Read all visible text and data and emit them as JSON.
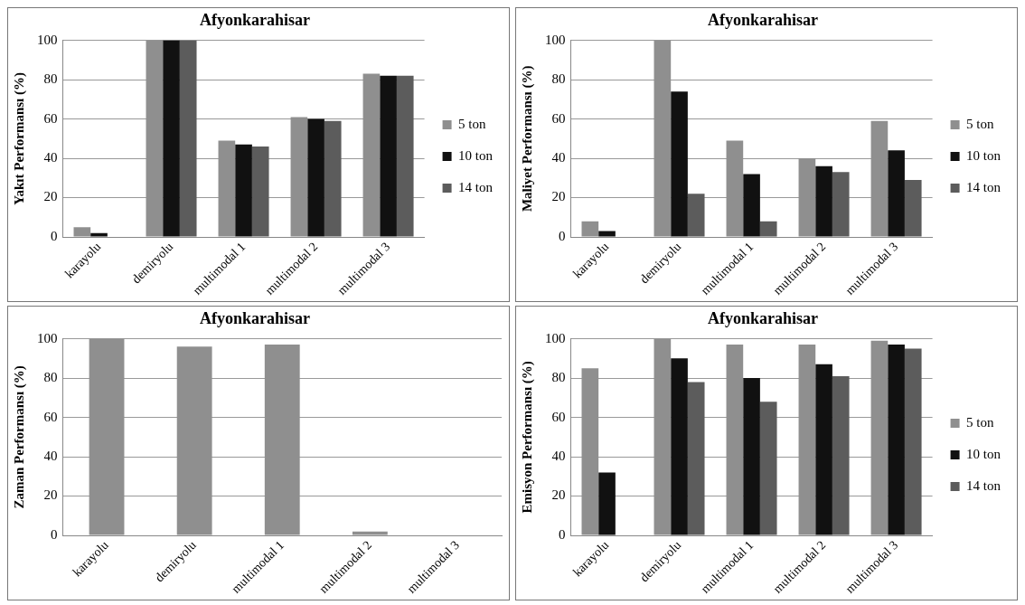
{
  "chart_data": [
    {
      "type": "bar",
      "title": "Afyonkarahisar",
      "ylabel": "Yakıt Performansı (%)",
      "categories": [
        "karayolu",
        "demiryolu",
        "multimodal 1",
        "multimodal 2",
        "multimodal 3"
      ],
      "series": [
        {
          "name": "5 ton",
          "color": "#8f8f8f",
          "values": [
            5,
            100,
            49,
            61,
            83
          ]
        },
        {
          "name": "10 ton",
          "color": "#111111",
          "values": [
            2,
            100,
            47,
            60,
            82
          ]
        },
        {
          "name": "14 ton",
          "color": "#5c5c5c",
          "values": [
            0,
            100,
            46,
            59,
            82
          ]
        }
      ],
      "ylim": [
        0,
        100
      ],
      "yticks": [
        0,
        20,
        40,
        60,
        80,
        100
      ],
      "grid": "y",
      "legend": "right"
    },
    {
      "type": "bar",
      "title": "Afyonkarahisar",
      "ylabel": "Maliyet Performansı (%)",
      "categories": [
        "karayolu",
        "demiryolu",
        "multimodal 1",
        "multimodal 2",
        "multimodal 3"
      ],
      "series": [
        {
          "name": "5 ton",
          "color": "#8f8f8f",
          "values": [
            8,
            100,
            49,
            40,
            59
          ]
        },
        {
          "name": "10 ton",
          "color": "#111111",
          "values": [
            3,
            74,
            32,
            36,
            44
          ]
        },
        {
          "name": "14 ton",
          "color": "#5c5c5c",
          "values": [
            0,
            22,
            8,
            33,
            29
          ]
        }
      ],
      "ylim": [
        0,
        100
      ],
      "yticks": [
        0,
        20,
        40,
        60,
        80,
        100
      ],
      "grid": "y",
      "legend": "right"
    },
    {
      "type": "bar",
      "title": "Afyonkarahisar",
      "ylabel": "Zaman Performansı (%)",
      "categories": [
        "karayolu",
        "demiryolu",
        "multimodal 1",
        "multimodal 2",
        "multimodal 3"
      ],
      "series": [
        {
          "color": "#8f8f8f",
          "values": [
            100,
            96,
            97,
            2,
            0
          ]
        }
      ],
      "ylim": [
        0,
        100
      ],
      "yticks": [
        0,
        20,
        40,
        60,
        80,
        100
      ],
      "grid": "y"
    },
    {
      "type": "bar",
      "title": "Afyonkarahisar",
      "ylabel": "Emisyon Performansı (%)",
      "categories": [
        "karayolu",
        "demiryolu",
        "multimodal 1",
        "multimodal 2",
        "multimodal 3"
      ],
      "series": [
        {
          "name": "5 ton",
          "color": "#8f8f8f",
          "values": [
            85,
            100,
            97,
            97,
            99
          ]
        },
        {
          "name": "10 ton",
          "color": "#111111",
          "values": [
            32,
            90,
            80,
            87,
            97
          ]
        },
        {
          "name": "14 ton",
          "color": "#5c5c5c",
          "values": [
            0,
            78,
            68,
            81,
            95
          ]
        }
      ],
      "ylim": [
        0,
        100
      ],
      "yticks": [
        0,
        20,
        40,
        60,
        80,
        100
      ],
      "grid": "y",
      "legend": "right"
    }
  ]
}
